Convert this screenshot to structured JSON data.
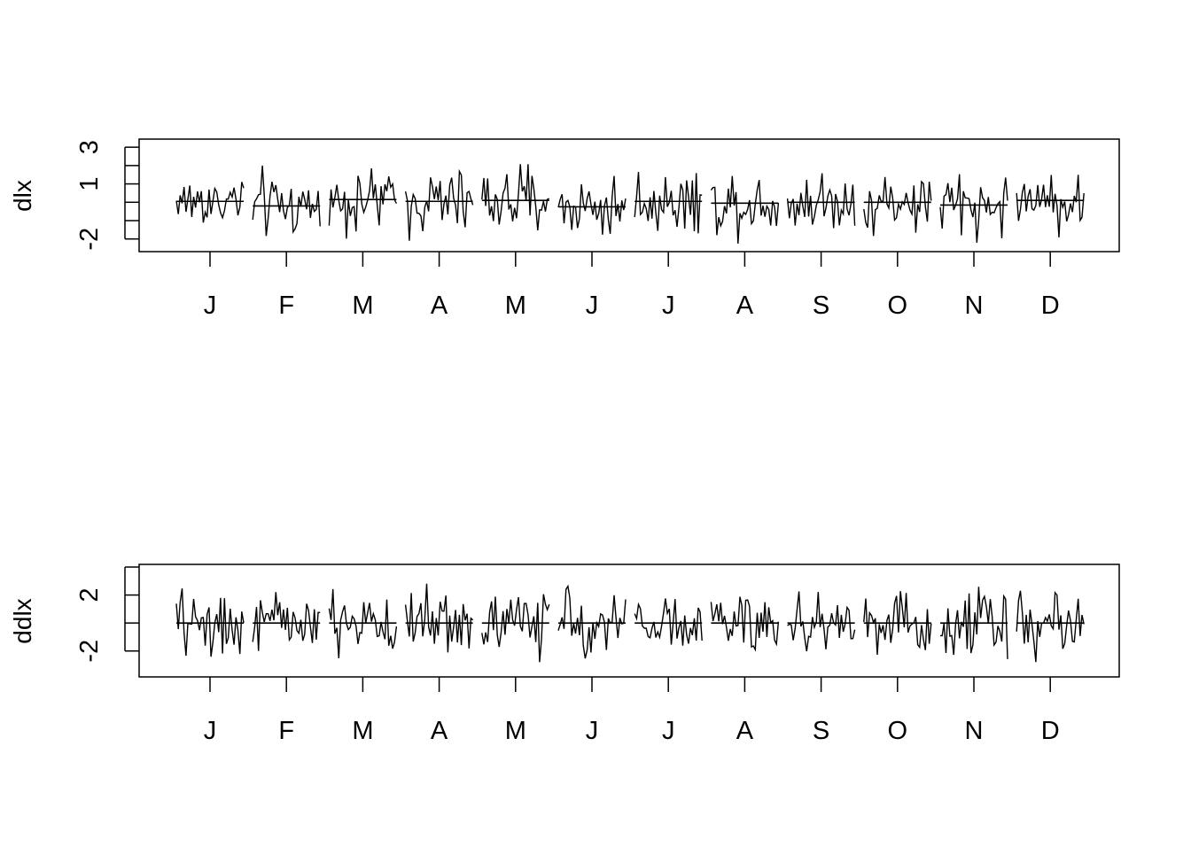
{
  "chart_data": [
    {
      "type": "line",
      "subtype": "monthplot",
      "ylabel": "dlx",
      "ylim": [
        -2.4,
        3.2
      ],
      "yticks": [
        -2,
        -1,
        0,
        1,
        2,
        3
      ],
      "ytick_labels": [
        "-2",
        "",
        "",
        "1",
        "",
        "3"
      ],
      "months": [
        "J",
        "F",
        "M",
        "A",
        "M",
        "J",
        "J",
        "A",
        "S",
        "O",
        "N",
        "D"
      ],
      "month_means": [
        0.05,
        -0.2,
        0.15,
        0.05,
        0.1,
        -0.25,
        0.05,
        -0.05,
        0.0,
        0.0,
        -0.15,
        0.1
      ],
      "points_per_month": 36,
      "line_color": "#000000",
      "grid": false
    },
    {
      "type": "line",
      "subtype": "monthplot",
      "ylabel": "ddlx",
      "ylim": [
        -3.6,
        4.0
      ],
      "yticks": [
        -2,
        0,
        2,
        4
      ],
      "ytick_labels": [
        "-2",
        "",
        "2",
        ""
      ],
      "months": [
        "J",
        "F",
        "M",
        "A",
        "M",
        "J",
        "J",
        "A",
        "S",
        "O",
        "N",
        "D"
      ],
      "month_means": [
        0.0,
        0.0,
        0.0,
        0.0,
        0.0,
        0.0,
        0.0,
        0.0,
        0.0,
        0.0,
        0.0,
        0.0
      ],
      "points_per_month": 36,
      "line_color": "#000000",
      "grid": false
    }
  ]
}
